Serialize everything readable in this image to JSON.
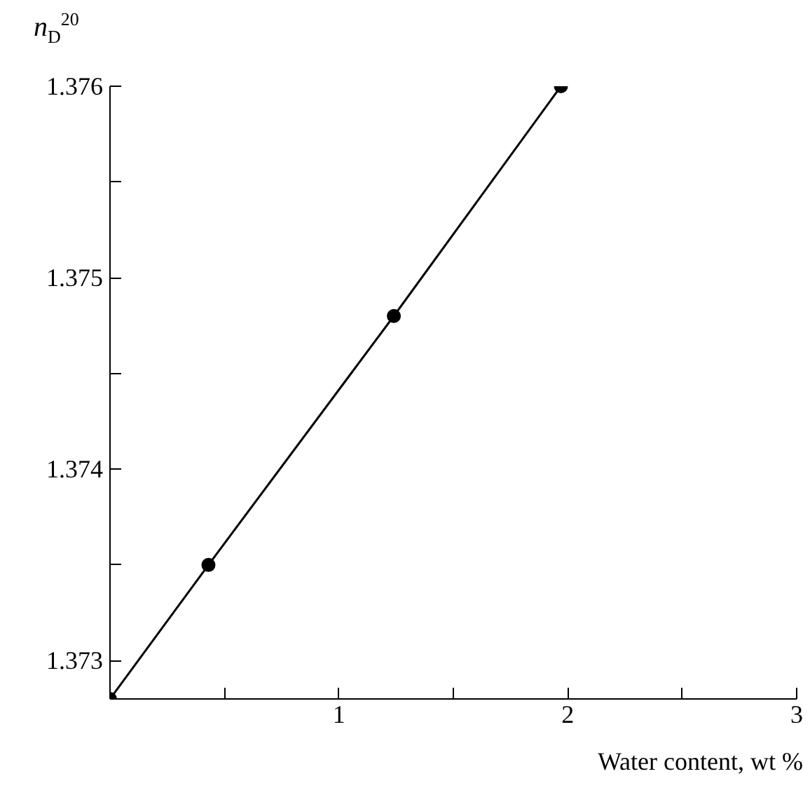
{
  "chart_data": {
    "type": "line",
    "xlabel": "Water content, wt %",
    "ylabel": "n$_{D}$$^{20}$",
    "x": [
      0,
      0.43,
      1.24,
      1.97
    ],
    "series": [
      {
        "color": "#000000",
        "values": [
          1.3728,
          1.3735,
          1.3748,
          1.376
        ]
      }
    ],
    "xlim": [
      0,
      3
    ],
    "ylim": [
      1.3728,
      1.376
    ],
    "xticks": [
      {
        "value": 0.5,
        "label": null
      },
      1,
      {
        "value": 1.5,
        "label": null
      },
      2,
      {
        "value": 2.5,
        "label": null
      },
      3
    ],
    "yticks": [
      1.373,
      {
        "value": 1.3735,
        "label": null
      },
      1.374,
      {
        "value": 1.3745,
        "label": null
      },
      1.375,
      {
        "value": 1.3755,
        "label": null
      },
      1.376
    ],
    "grid": false,
    "marker": "circle",
    "line_style": "solid"
  }
}
